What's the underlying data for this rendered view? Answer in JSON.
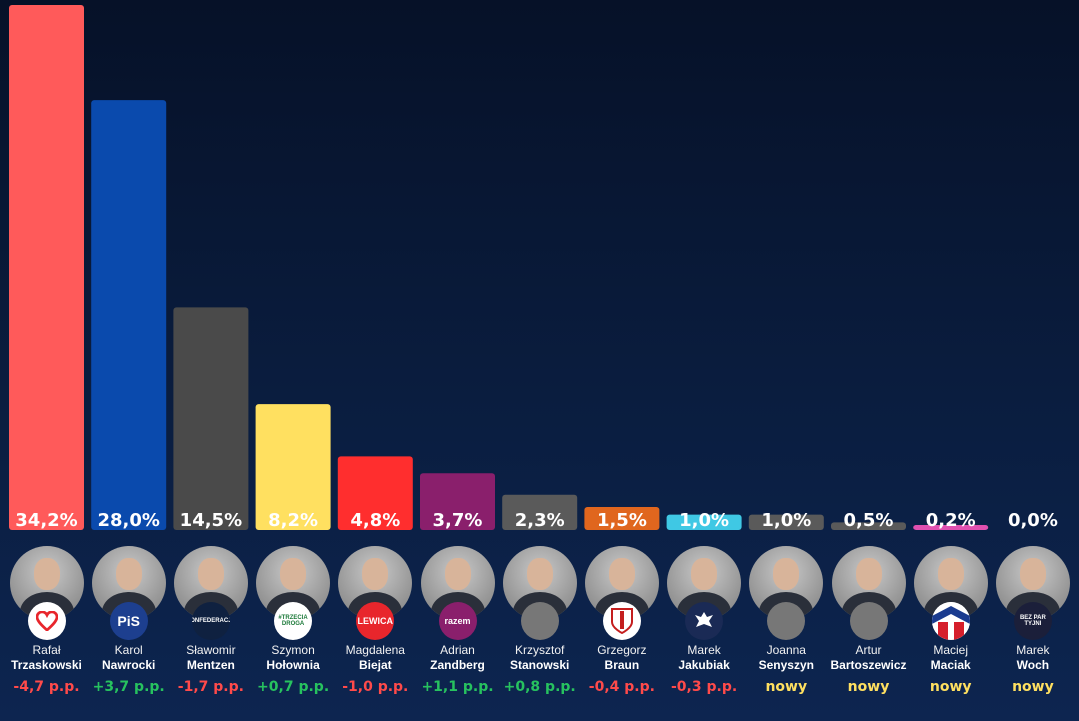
{
  "chart_data": {
    "type": "bar",
    "ylim": [
      0,
      34.2
    ],
    "candidates": [
      {
        "first": "Rafał",
        "last": "Trzaskowski",
        "value": 34.2,
        "label": "34,2%",
        "change": "-4,7 p.p.",
        "change_color": "#ff4a4a",
        "bar_color": "#ff5a5a",
        "logo": "heart-icon",
        "logo_text": "",
        "logo_bg": "#ffffff"
      },
      {
        "first": "Karol",
        "last": "Nawrocki",
        "value": 28.0,
        "label": "28,0%",
        "change": "+3,7 p.p.",
        "change_color": "#27c25f",
        "bar_color": "#0a4aad",
        "logo": "pis-logo",
        "logo_text": "PiS",
        "logo_bg": "#1d3f8f"
      },
      {
        "first": "Sławomir",
        "last": "Mentzen",
        "value": 14.5,
        "label": "14,5%",
        "change": "-1,7 p.p.",
        "change_color": "#ff4a4a",
        "bar_color": "#4a4a4a",
        "logo": "konfederacja-logo",
        "logo_text": "KONFEDERACJA",
        "logo_bg": "#0f2140"
      },
      {
        "first": "Szymon",
        "last": "Hołownia",
        "value": 8.2,
        "label": "8,2%",
        "change": "+0,7 p.p.",
        "change_color": "#27c25f",
        "bar_color": "#ffe060",
        "logo": "trzecia-droga-logo",
        "logo_text": "#TRZECIA DROGA",
        "logo_bg": "#ffffff"
      },
      {
        "first": "Magdalena",
        "last": "Biejat",
        "value": 4.8,
        "label": "4,8%",
        "change": "-1,0 p.p.",
        "change_color": "#ff4a4a",
        "bar_color": "#ff2e2e",
        "logo": "lewica-logo",
        "logo_text": "LEWICA",
        "logo_bg": "#e8262c"
      },
      {
        "first": "Adrian",
        "last": "Zandberg",
        "value": 3.7,
        "label": "3,7%",
        "change": "+1,1 p.p.",
        "change_color": "#27c25f",
        "bar_color": "#8a1f6c",
        "logo": "razem-logo",
        "logo_text": "razem",
        "logo_bg": "#8a1f6c"
      },
      {
        "first": "Krzysztof",
        "last": "Stanowski",
        "value": 2.3,
        "label": "2,3%",
        "change": "+0,8 p.p.",
        "change_color": "#27c25f",
        "bar_color": "#5a5a5a",
        "logo": "none",
        "logo_text": "",
        "logo_bg": "#777777"
      },
      {
        "first": "Grzegorz",
        "last": "Braun",
        "value": 1.5,
        "label": "1,5%",
        "change": "-0,4 p.p.",
        "change_color": "#ff4a4a",
        "bar_color": "#e0661e",
        "logo": "crest-icon",
        "logo_text": "",
        "logo_bg": "#ffffff"
      },
      {
        "first": "Marek",
        "last": "Jakubiak",
        "value": 1.0,
        "label": "1,0%",
        "change": "-0,3 p.p.",
        "change_color": "#ff4a4a",
        "bar_color": "#3fc8e4",
        "logo": "eagle-icon",
        "logo_text": "",
        "logo_bg": "#1a2a55"
      },
      {
        "first": "Joanna",
        "last": "Senyszyn",
        "value": 1.0,
        "label": "1,0%",
        "change": "nowy",
        "change_color": "#ffe060",
        "bar_color": "#5a5a5a",
        "logo": "none",
        "logo_text": "",
        "logo_bg": "#777777"
      },
      {
        "first": "Artur",
        "last": "Bartoszewicz",
        "value": 0.5,
        "label": "0,5%",
        "change": "nowy",
        "change_color": "#ffe060",
        "bar_color": "#5a5a5a",
        "logo": "none",
        "logo_text": "",
        "logo_bg": "#777777"
      },
      {
        "first": "Maciej",
        "last": "Maciak",
        "value": 0.2,
        "label": "0,2%",
        "change": "nowy",
        "change_color": "#ffe060",
        "bar_color": "#e050b0",
        "logo": "flag-icon",
        "logo_text": "",
        "logo_bg": "#ffffff"
      },
      {
        "first": "Marek",
        "last": "Woch",
        "value": 0.0,
        "label": "0,0%",
        "change": "nowy",
        "change_color": "#ffe060",
        "bar_color": "#5a5a5a",
        "logo": "bezpartyjni-logo",
        "logo_text": "BEZ PAR TYJNI",
        "logo_bg": "#1b1f3a"
      }
    ]
  }
}
